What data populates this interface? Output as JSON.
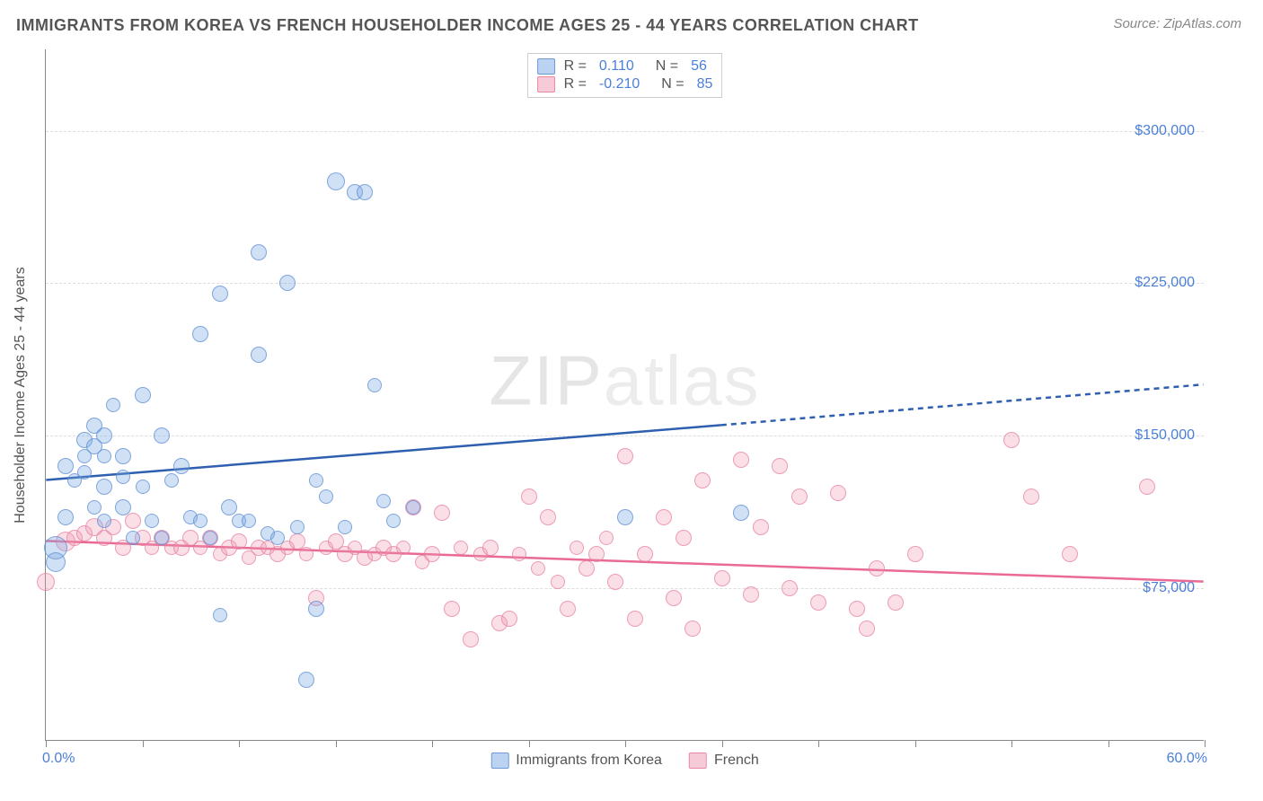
{
  "title": "IMMIGRANTS FROM KOREA VS FRENCH HOUSEHOLDER INCOME AGES 25 - 44 YEARS CORRELATION CHART",
  "source": "Source: ZipAtlas.com",
  "watermark_bold": "ZIP",
  "watermark_thin": "atlas",
  "chart": {
    "type": "scatter",
    "yaxis_title": "Householder Income Ages 25 - 44 years",
    "xlim": [
      0,
      60
    ],
    "ylim": [
      0,
      340000
    ],
    "x_label_min": "0.0%",
    "x_label_max": "60.0%",
    "x_ticks": [
      0,
      5,
      10,
      15,
      20,
      25,
      30,
      35,
      40,
      45,
      50,
      55,
      60
    ],
    "y_ticks": [
      {
        "v": 75000,
        "label": "$75,000"
      },
      {
        "v": 150000,
        "label": "$150,000"
      },
      {
        "v": 225000,
        "label": "$225,000"
      },
      {
        "v": 300000,
        "label": "$300,000"
      }
    ],
    "grid_color": "#dddddd",
    "axis_color": "#888888",
    "background_color": "#ffffff",
    "tick_label_color": "#4a7fd8",
    "marker_base_size": 18,
    "series": [
      {
        "name": "Immigrants from Korea",
        "color_fill": "rgba(120,165,225,0.35)",
        "color_stroke": "rgba(90,140,210,0.7)",
        "trend_color": "#2e5fb0",
        "legend_r": "0.110",
        "legend_n": "56",
        "trend": {
          "x1": 0,
          "y1": 128000,
          "x2": 35,
          "y2": 155000,
          "x2dash": 60,
          "y2dash": 175000
        },
        "points": [
          [
            0.5,
            95000,
            26
          ],
          [
            0.5,
            88000,
            22
          ],
          [
            1,
            135000,
            18
          ],
          [
            1,
            110000,
            18
          ],
          [
            1.5,
            128000,
            16
          ],
          [
            2,
            148000,
            18
          ],
          [
            2,
            140000,
            16
          ],
          [
            2,
            132000,
            16
          ],
          [
            2.5,
            155000,
            18
          ],
          [
            2.5,
            145000,
            18
          ],
          [
            2.5,
            115000,
            16
          ],
          [
            3,
            150000,
            18
          ],
          [
            3,
            140000,
            16
          ],
          [
            3,
            125000,
            18
          ],
          [
            3,
            108000,
            16
          ],
          [
            3.5,
            165000,
            16
          ],
          [
            4,
            140000,
            18
          ],
          [
            4,
            130000,
            16
          ],
          [
            4,
            115000,
            18
          ],
          [
            4.5,
            100000,
            16
          ],
          [
            5,
            170000,
            18
          ],
          [
            5,
            125000,
            16
          ],
          [
            5.5,
            108000,
            16
          ],
          [
            6,
            150000,
            18
          ],
          [
            6,
            100000,
            16
          ],
          [
            6.5,
            128000,
            16
          ],
          [
            7,
            135000,
            18
          ],
          [
            7.5,
            110000,
            16
          ],
          [
            8,
            200000,
            18
          ],
          [
            8,
            108000,
            16
          ],
          [
            8.5,
            100000,
            16
          ],
          [
            9,
            62000,
            16
          ],
          [
            9,
            220000,
            18
          ],
          [
            9.5,
            115000,
            18
          ],
          [
            10,
            108000,
            16
          ],
          [
            10.5,
            108000,
            16
          ],
          [
            11,
            240000,
            18
          ],
          [
            11,
            190000,
            18
          ],
          [
            11.5,
            102000,
            16
          ],
          [
            12,
            100000,
            16
          ],
          [
            12.5,
            225000,
            18
          ],
          [
            13,
            105000,
            16
          ],
          [
            13.5,
            30000,
            18
          ],
          [
            14,
            128000,
            16
          ],
          [
            14,
            65000,
            18
          ],
          [
            14.5,
            120000,
            16
          ],
          [
            15,
            275000,
            20
          ],
          [
            15.5,
            105000,
            16
          ],
          [
            16,
            270000,
            18
          ],
          [
            16.5,
            270000,
            18
          ],
          [
            17,
            175000,
            16
          ],
          [
            17.5,
            118000,
            16
          ],
          [
            18,
            108000,
            16
          ],
          [
            19,
            115000,
            16
          ],
          [
            30,
            110000,
            18
          ],
          [
            36,
            112000,
            18
          ]
        ]
      },
      {
        "name": "French",
        "color_fill": "rgba(240,150,175,0.3)",
        "color_stroke": "rgba(230,120,155,0.65)",
        "trend_color": "#e86a95",
        "legend_r": "-0.210",
        "legend_n": "85",
        "trend": {
          "x1": 0,
          "y1": 98000,
          "x2": 60,
          "y2": 78000
        },
        "points": [
          [
            0,
            78000,
            20
          ],
          [
            1,
            98000,
            22
          ],
          [
            1.5,
            100000,
            18
          ],
          [
            2,
            102000,
            18
          ],
          [
            2.5,
            105000,
            20
          ],
          [
            3,
            100000,
            18
          ],
          [
            3.5,
            105000,
            18
          ],
          [
            4,
            95000,
            18
          ],
          [
            4.5,
            108000,
            18
          ],
          [
            5,
            100000,
            18
          ],
          [
            5.5,
            95000,
            16
          ],
          [
            6,
            100000,
            18
          ],
          [
            6.5,
            95000,
            16
          ],
          [
            7,
            95000,
            18
          ],
          [
            7.5,
            100000,
            18
          ],
          [
            8,
            95000,
            16
          ],
          [
            8.5,
            100000,
            18
          ],
          [
            9,
            92000,
            16
          ],
          [
            9.5,
            95000,
            18
          ],
          [
            10,
            98000,
            18
          ],
          [
            10.5,
            90000,
            16
          ],
          [
            11,
            95000,
            18
          ],
          [
            11.5,
            95000,
            16
          ],
          [
            12,
            92000,
            18
          ],
          [
            12.5,
            95000,
            16
          ],
          [
            13,
            98000,
            18
          ],
          [
            13.5,
            92000,
            16
          ],
          [
            14,
            70000,
            18
          ],
          [
            14.5,
            95000,
            16
          ],
          [
            15,
            98000,
            18
          ],
          [
            15.5,
            92000,
            18
          ],
          [
            16,
            95000,
            16
          ],
          [
            16.5,
            90000,
            18
          ],
          [
            17,
            92000,
            16
          ],
          [
            17.5,
            95000,
            18
          ],
          [
            18,
            92000,
            18
          ],
          [
            18.5,
            95000,
            16
          ],
          [
            19,
            115000,
            18
          ],
          [
            19.5,
            88000,
            16
          ],
          [
            20,
            92000,
            18
          ],
          [
            20.5,
            112000,
            18
          ],
          [
            21,
            65000,
            18
          ],
          [
            21.5,
            95000,
            16
          ],
          [
            22,
            50000,
            18
          ],
          [
            22.5,
            92000,
            16
          ],
          [
            23,
            95000,
            18
          ],
          [
            23.5,
            58000,
            18
          ],
          [
            24,
            60000,
            18
          ],
          [
            24.5,
            92000,
            16
          ],
          [
            25,
            120000,
            18
          ],
          [
            25.5,
            85000,
            16
          ],
          [
            26,
            110000,
            18
          ],
          [
            26.5,
            78000,
            16
          ],
          [
            27,
            65000,
            18
          ],
          [
            27.5,
            95000,
            16
          ],
          [
            28,
            85000,
            18
          ],
          [
            28.5,
            92000,
            18
          ],
          [
            29,
            100000,
            16
          ],
          [
            29.5,
            78000,
            18
          ],
          [
            30,
            140000,
            18
          ],
          [
            30.5,
            60000,
            18
          ],
          [
            31,
            92000,
            18
          ],
          [
            32,
            110000,
            18
          ],
          [
            32.5,
            70000,
            18
          ],
          [
            33,
            100000,
            18
          ],
          [
            33.5,
            55000,
            18
          ],
          [
            34,
            128000,
            18
          ],
          [
            35,
            80000,
            18
          ],
          [
            36,
            138000,
            18
          ],
          [
            36.5,
            72000,
            18
          ],
          [
            37,
            105000,
            18
          ],
          [
            38,
            135000,
            18
          ],
          [
            38.5,
            75000,
            18
          ],
          [
            39,
            120000,
            18
          ],
          [
            40,
            68000,
            18
          ],
          [
            41,
            122000,
            18
          ],
          [
            42,
            65000,
            18
          ],
          [
            42.5,
            55000,
            18
          ],
          [
            43,
            85000,
            18
          ],
          [
            44,
            68000,
            18
          ],
          [
            45,
            92000,
            18
          ],
          [
            50,
            148000,
            18
          ],
          [
            51,
            120000,
            18
          ],
          [
            53,
            92000,
            18
          ],
          [
            57,
            125000,
            18
          ]
        ]
      }
    ],
    "legend_bottom": [
      {
        "label": "Immigrants from Korea",
        "swatch": "blue"
      },
      {
        "label": "French",
        "swatch": "pink"
      }
    ]
  }
}
